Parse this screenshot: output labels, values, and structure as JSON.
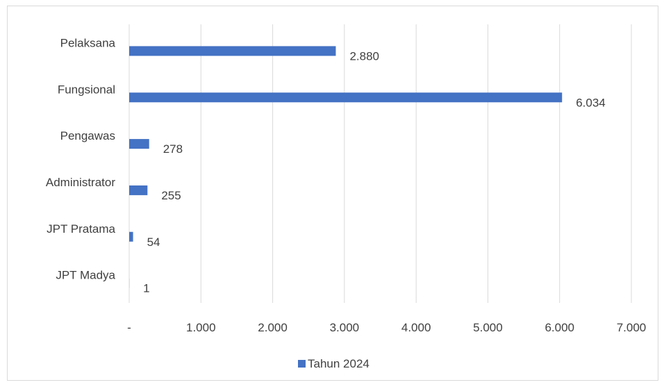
{
  "chart_data": {
    "type": "bar",
    "orientation": "horizontal",
    "categories": [
      "JPT Madya",
      "JPT Pratama",
      "Administrator",
      "Pengawas",
      "Fungsional",
      "Pelaksana"
    ],
    "series": [
      {
        "name": "Tahun 2024",
        "values": [
          1,
          54,
          255,
          278,
          6034,
          2880
        ],
        "data_labels": [
          "1",
          "54",
          "255",
          "278",
          "6.034",
          "2.880"
        ]
      }
    ],
    "xlim": [
      0,
      7000
    ],
    "x_ticks": [
      0,
      1000,
      2000,
      3000,
      4000,
      5000,
      6000,
      7000
    ],
    "x_tick_labels": [
      "-",
      "1.000",
      "2.000",
      "3.000",
      "4.000",
      "5.000",
      "6.000",
      "7.000"
    ],
    "title": "",
    "xlabel": "",
    "ylabel": "",
    "grid": "vertical",
    "legend": "bottom",
    "colors": {
      "bar": "#4472c4",
      "grid": "#d9d9d9",
      "text": "#404040"
    }
  }
}
